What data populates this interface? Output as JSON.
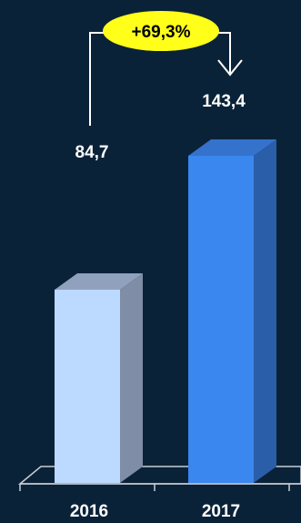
{
  "chart_data": {
    "type": "bar",
    "categories": [
      "2016",
      "2017"
    ],
    "values": [
      84.7,
      143.4
    ],
    "value_labels": [
      "84,7",
      "143,4"
    ],
    "change_label": "+69,3%",
    "ylim": [
      0,
      143.4
    ],
    "grid": false,
    "legend": "none",
    "bar_style": "3d",
    "colors": {
      "background": "#0a2238",
      "bar_2016_front": "#bcd9ff",
      "bar_2016_side": "#7f8da6",
      "bar_2016_top": "#8fa1bd",
      "bar_2017_front": "#3a87ef",
      "bar_2017_side": "#2a5ea8",
      "bar_2017_top": "#3572cc",
      "badge": "#ffff1a",
      "badge_text": "#000000",
      "text": "#ffffff",
      "axis": "#c8ccd4"
    }
  }
}
